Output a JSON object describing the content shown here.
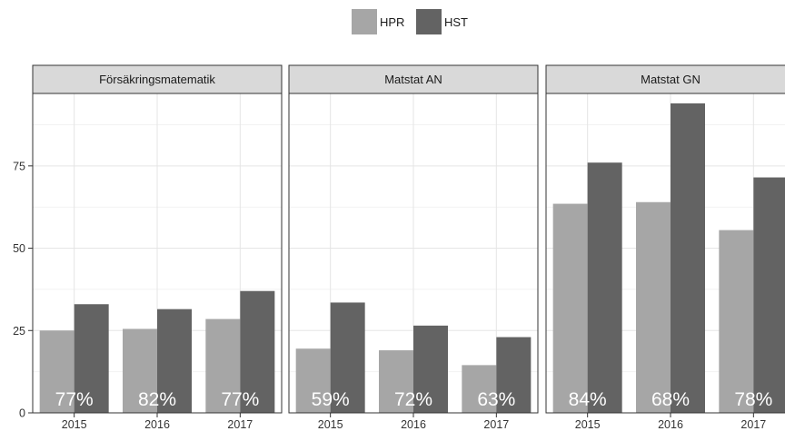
{
  "chart_data": {
    "type": "bar",
    "legend": {
      "position": "top",
      "items": [
        "HPR",
        "HST"
      ]
    },
    "colors": {
      "HPR": "#a6a6a6",
      "HST": "#636363"
    },
    "grid": true,
    "ylim": [
      0,
      97
    ],
    "yticks": [
      0,
      25,
      50,
      75
    ],
    "categories": [
      "2015",
      "2016",
      "2017"
    ],
    "panels": [
      {
        "title": "Försäkringsmatematik",
        "series": [
          {
            "name": "HPR",
            "values": [
              25,
              25.5,
              28.5
            ]
          },
          {
            "name": "HST",
            "values": [
              33,
              31.5,
              37
            ]
          }
        ],
        "labels": [
          "77%",
          "82%",
          "77%"
        ]
      },
      {
        "title": "Matstat AN",
        "series": [
          {
            "name": "HPR",
            "values": [
              19.5,
              19,
              14.5
            ]
          },
          {
            "name": "HST",
            "values": [
              33.5,
              26.5,
              23
            ]
          }
        ],
        "labels": [
          "59%",
          "72%",
          "63%"
        ]
      },
      {
        "title": "Matstat GN",
        "series": [
          {
            "name": "HPR",
            "values": [
              63.5,
              64,
              55.5
            ]
          },
          {
            "name": "HST",
            "values": [
              76,
              94,
              71.5
            ]
          }
        ],
        "labels": [
          "84%",
          "68%",
          "78%"
        ]
      }
    ]
  }
}
